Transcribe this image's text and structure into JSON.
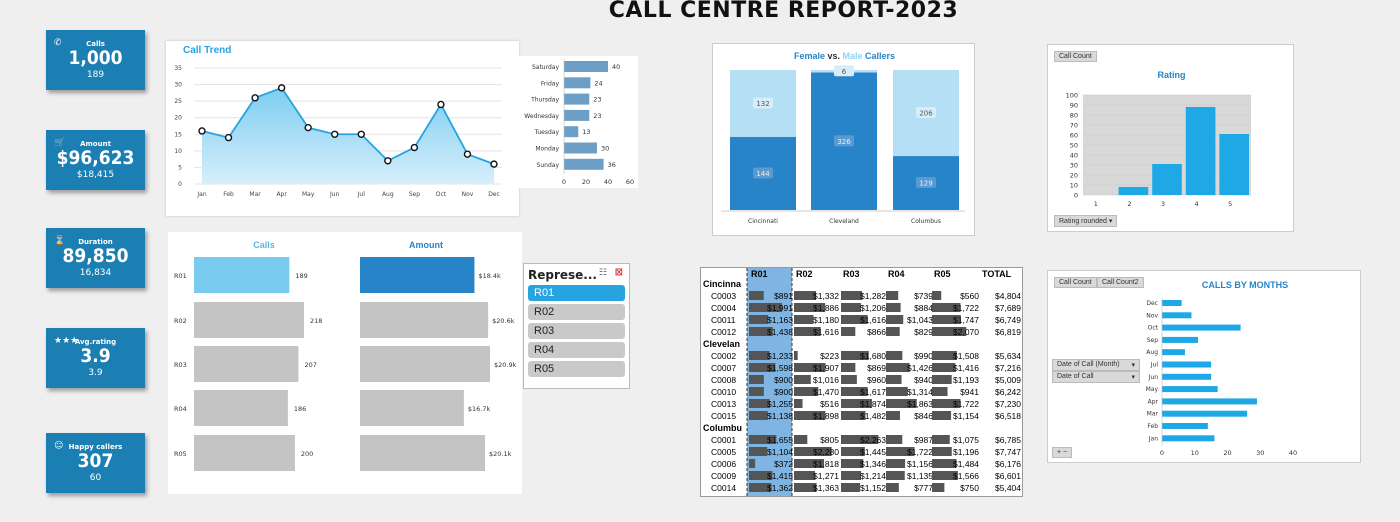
{
  "title": "CALL CENTRE REPORT-2023",
  "kpis": [
    {
      "icon": "phone-icon",
      "glyph": "✆",
      "label": "Calls",
      "value": "1,000",
      "sub": "189"
    },
    {
      "icon": "cart-icon",
      "glyph": "🛒",
      "label": "Amount",
      "value": "$96,623",
      "sub": "$18,415"
    },
    {
      "icon": "hourglass-icon",
      "glyph": "⌛",
      "label": "Duration",
      "value": "89,850",
      "sub": "16,834"
    },
    {
      "icon": "stars-icon",
      "glyph": "★★★",
      "label": "Avg.rating",
      "value": "3.9",
      "sub": "3.9"
    },
    {
      "icon": "smiley-icon",
      "glyph": "☺",
      "label": "Happy callers",
      "value": "307",
      "sub": "60"
    }
  ],
  "call_trend": {
    "title": "Call Trend",
    "chart_data": {
      "type": "area",
      "categories": [
        "Jan",
        "Feb",
        "Mar",
        "Apr",
        "May",
        "Jun",
        "Jul",
        "Aug",
        "Sep",
        "Oct",
        "Nov",
        "Dec"
      ],
      "values": [
        16,
        14,
        26,
        29,
        17,
        15,
        15,
        7,
        11,
        24,
        9,
        6
      ],
      "ylim": [
        0,
        35
      ],
      "yticks": [
        0,
        5,
        10,
        15,
        20,
        25,
        30,
        35
      ]
    }
  },
  "weekday": {
    "chart_data": {
      "type": "bar",
      "categories": [
        "Saturday",
        "Friday",
        "Thursday",
        "Wednesday",
        "Tuesday",
        "Monday",
        "Sunday"
      ],
      "values": [
        40,
        24,
        23,
        23,
        13,
        30,
        36
      ],
      "xlim": [
        0,
        60
      ],
      "xticks": [
        0,
        20,
        40,
        60
      ]
    }
  },
  "gender": {
    "title_female": "Female",
    "title_vs": " vs. ",
    "title_male": "Male",
    "title_end": " Callers",
    "chart_data": {
      "type": "bar",
      "stacked": true,
      "categories": [
        "Cincinnati",
        "Cleveland",
        "Columbus"
      ],
      "series": [
        {
          "values": [
            144,
            326,
            129
          ]
        },
        {
          "values": [
            132,
            6,
            206
          ]
        }
      ]
    }
  },
  "rating": {
    "button": "Call Count",
    "title": "Rating",
    "filter": "Rating rounded",
    "chart_data": {
      "type": "bar",
      "categories": [
        "1",
        "2",
        "3",
        "4",
        "5"
      ],
      "values": [
        0,
        8,
        31,
        88,
        61
      ],
      "ylim": [
        0,
        100
      ],
      "yticks": [
        0,
        10,
        20,
        30,
        40,
        50,
        60,
        70,
        80,
        90,
        100
      ]
    }
  },
  "rep_calls": {
    "title": "Calls",
    "chart_data": {
      "type": "bar",
      "categories": [
        "R01",
        "R02",
        "R03",
        "R04",
        "R05"
      ],
      "values": [
        189,
        218,
        207,
        186,
        200
      ]
    }
  },
  "rep_amount": {
    "title": "Amount",
    "chart_data": {
      "type": "bar",
      "categories": [
        "R01",
        "R02",
        "R03",
        "R04",
        "R05"
      ],
      "values": [
        18.4,
        20.6,
        20.9,
        16.7,
        20.1
      ],
      "labels": [
        "$18.4k",
        "$20.6k",
        "$20.9k",
        "$16.7k",
        "$20.1k"
      ]
    }
  },
  "slicer": {
    "header": "Represe...",
    "items": [
      "R01",
      "R02",
      "R03",
      "R04",
      "R05"
    ],
    "selected": 0
  },
  "table": {
    "columns": [
      "",
      "R01",
      "R02",
      "R03",
      "R04",
      "R05",
      "TOTAL"
    ],
    "groups": [
      {
        "name": "Cincinna",
        "rows": [
          [
            "C0003",
            "$891",
            "$1,332",
            "$1,282",
            "$739",
            "$560",
            "$4,804"
          ],
          [
            "C0004",
            "$1,991",
            "$1,886",
            "$1,206",
            "$884",
            "$1,722",
            "$7,689"
          ],
          [
            "C0011",
            "$1,163",
            "$1,180",
            "$1,616",
            "$1,043",
            "$1,747",
            "$6,749"
          ],
          [
            "C0012",
            "$1,438",
            "$1,616",
            "$866",
            "$829",
            "$2,070",
            "$6,819"
          ]
        ]
      },
      {
        "name": "Clevelan",
        "rows": [
          [
            "C0002",
            "$1,233",
            "$223",
            "$1,680",
            "$990",
            "$1,508",
            "$5,634"
          ],
          [
            "C0007",
            "$1,598",
            "$1,907",
            "$869",
            "$1,426",
            "$1,416",
            "$7,216"
          ],
          [
            "C0008",
            "$900",
            "$1,016",
            "$960",
            "$940",
            "$1,193",
            "$5,009"
          ],
          [
            "C0010",
            "$900",
            "$1,470",
            "$1,617",
            "$1,314",
            "$941",
            "$6,242"
          ],
          [
            "C0013",
            "$1,255",
            "$516",
            "$1,874",
            "$1,863",
            "$1,722",
            "$7,230"
          ],
          [
            "C0015",
            "$1,138",
            "$1,898",
            "$1,482",
            "$846",
            "$1,154",
            "$6,518"
          ]
        ]
      },
      {
        "name": "Columbu",
        "rows": [
          [
            "C0001",
            "$1,655",
            "$805",
            "$2,263",
            "$987",
            "$1,075",
            "$6,785"
          ],
          [
            "C0005",
            "$1,104",
            "$2,280",
            "$1,445",
            "$1,722",
            "$1,196",
            "$7,747"
          ],
          [
            "C0006",
            "$372",
            "$1,818",
            "$1,346",
            "$1,156",
            "$1,484",
            "$6,176"
          ],
          [
            "C0009",
            "$1,415",
            "$1,271",
            "$1,214",
            "$1,135",
            "$1,566",
            "$6,601"
          ],
          [
            "C0014",
            "$1,362",
            "$1,363",
            "$1,152",
            "$777",
            "$750",
            "$5,404"
          ]
        ]
      }
    ]
  },
  "by_months": {
    "title": "CALLS BY MONTHS",
    "btn1": "Call Count",
    "btn2": "Call Count2",
    "filter1": "Date of Call (Month)",
    "filter2": "Date of Call",
    "chart_data": {
      "type": "bar",
      "categories": [
        "Dec",
        "Nov",
        "Oct",
        "Sep",
        "Aug",
        "Jul",
        "Jun",
        "May",
        "Apr",
        "Mar",
        "Feb",
        "Jan"
      ],
      "values": [
        6,
        9,
        24,
        11,
        7,
        15,
        15,
        17,
        29,
        26,
        14,
        16
      ],
      "xlim": [
        0,
        40
      ],
      "xticks": [
        0,
        10,
        20,
        30,
        40
      ]
    }
  },
  "colors": {
    "accent": "#1b7fb3",
    "light": "#79cbef",
    "blue": "#2784c8",
    "lightblue": "#b5dff5",
    "grey": "#c4c4c4",
    "rating": "#1ea8e6"
  }
}
